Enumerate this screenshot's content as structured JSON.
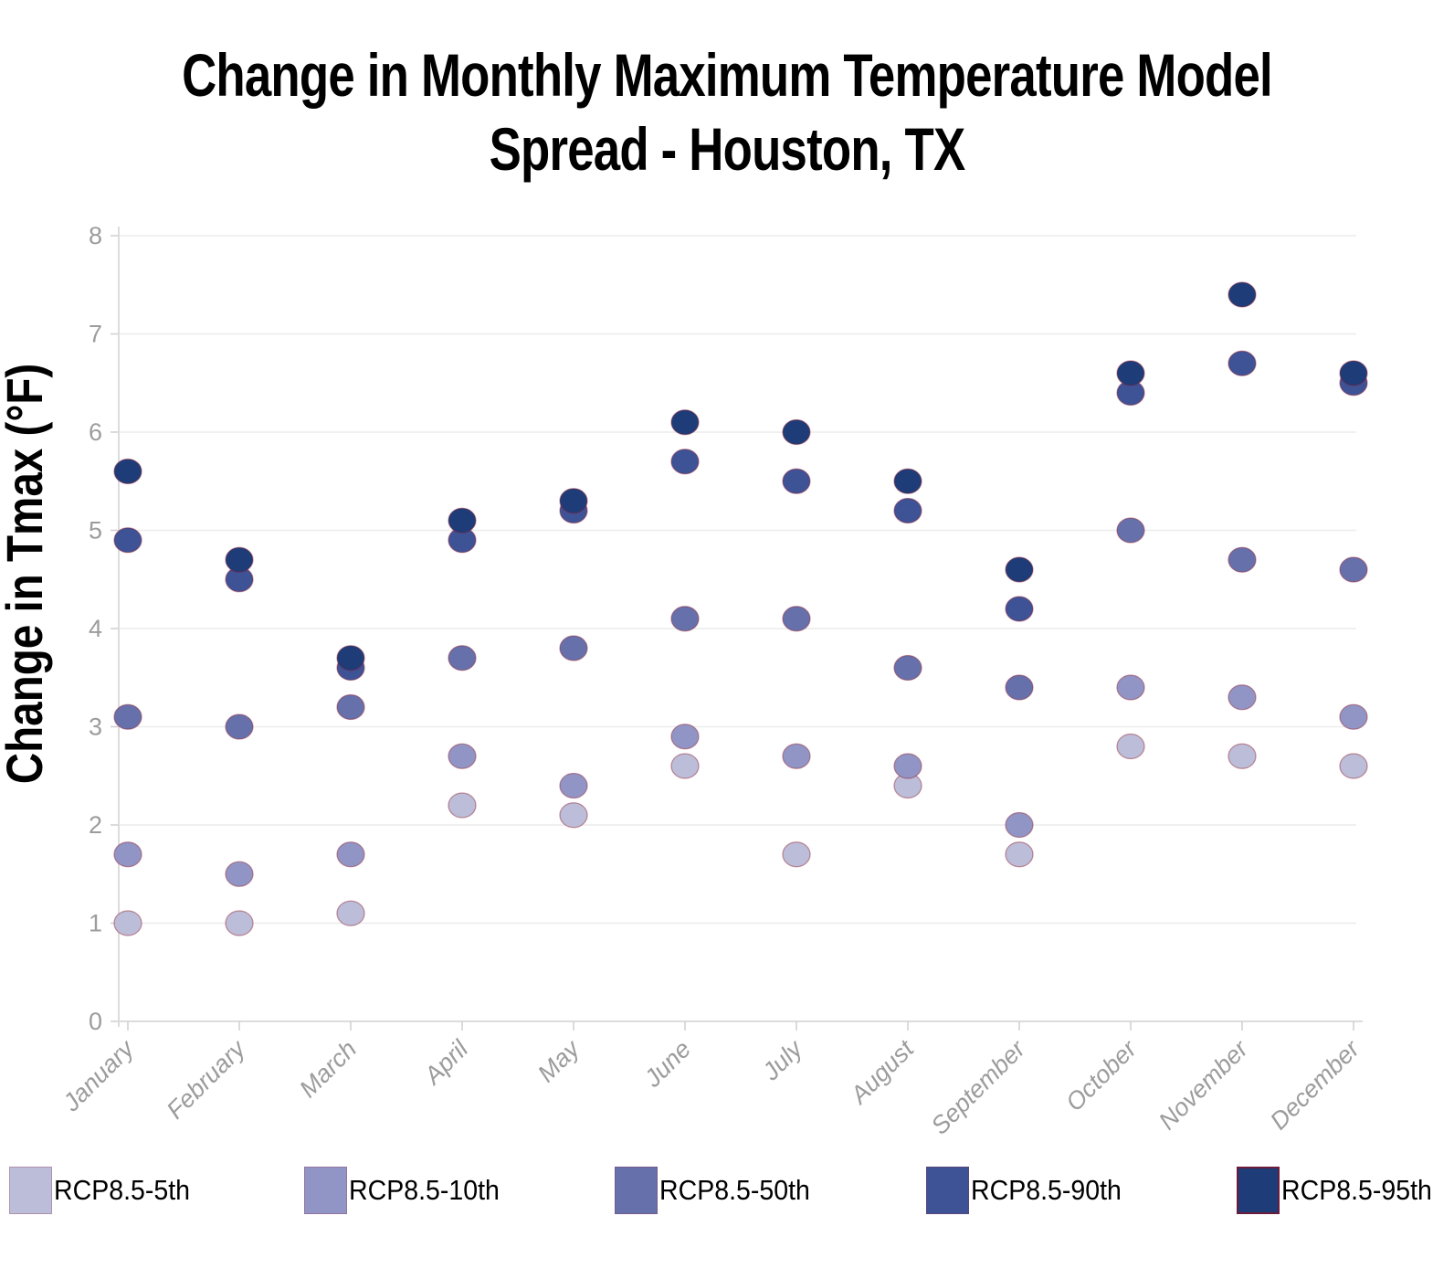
{
  "title": {
    "line1": "Change in Monthly Maximum Temperature Model",
    "line2": "Spread - Houston, TX"
  },
  "y_axis": {
    "label": "Change in Tmax (°F)",
    "ticks": [
      0,
      1,
      2,
      3,
      4,
      5,
      6,
      7,
      8
    ]
  },
  "colors": {
    "grid": "#ececec",
    "axis": "#dcdcdc",
    "tick": "#cfcfcf",
    "tick_label": "#9c9c9c",
    "title_text": "#000000",
    "marker_outline": "rgba(139, 28, 52, 0.45)"
  },
  "chart_data": {
    "type": "scatter",
    "title": "Change in Monthly Maximum Temperature Model Spread - Houston, TX",
    "xlabel": "",
    "ylabel": "Change in Tmax (°F)",
    "ylim": [
      0,
      8
    ],
    "yticks": [
      0,
      1,
      2,
      3,
      4,
      5,
      6,
      7,
      8
    ],
    "grid": true,
    "legend_position": "bottom",
    "categories": [
      "January",
      "February",
      "March",
      "April",
      "May",
      "June",
      "July",
      "August",
      "September",
      "October",
      "November",
      "December"
    ],
    "series": [
      {
        "name": "RCP8.5-5th",
        "color": "#bcbdd8",
        "values": [
          1.0,
          1.0,
          1.1,
          2.2,
          2.1,
          2.6,
          1.7,
          2.4,
          1.7,
          2.8,
          2.7,
          2.6
        ]
      },
      {
        "name": "RCP8.5-10th",
        "color": "#9195c5",
        "values": [
          1.7,
          1.5,
          1.7,
          2.7,
          2.4,
          2.9,
          2.7,
          2.6,
          2.0,
          3.4,
          3.3,
          3.1
        ]
      },
      {
        "name": "RCP8.5-50th",
        "color": "#6670ab",
        "values": [
          3.1,
          3.0,
          3.2,
          3.7,
          3.8,
          4.1,
          4.1,
          3.6,
          3.4,
          5.0,
          4.7,
          4.6
        ]
      },
      {
        "name": "RCP8.5-90th",
        "color": "#3e5296",
        "values": [
          4.9,
          4.5,
          3.6,
          4.9,
          5.2,
          5.7,
          5.5,
          5.2,
          4.2,
          6.4,
          6.7,
          6.5
        ]
      },
      {
        "name": "RCP8.5-95th",
        "color": "#1e3c78",
        "values": [
          5.6,
          4.7,
          3.7,
          5.1,
          5.3,
          6.1,
          6.0,
          5.5,
          4.6,
          6.6,
          7.4,
          6.6
        ]
      }
    ]
  }
}
